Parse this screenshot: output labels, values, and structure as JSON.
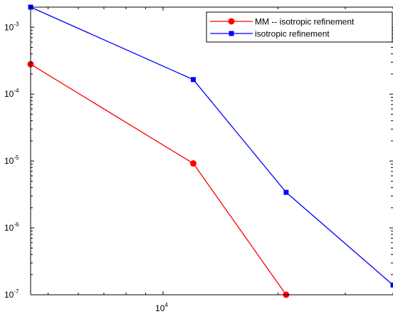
{
  "chart_data": {
    "type": "line",
    "title": "",
    "xlabel": "",
    "ylabel": "",
    "xscale": "log",
    "yscale": "log",
    "xlim": [
      4500,
      40000
    ],
    "ylim": [
      1e-07,
      0.002
    ],
    "grid": false,
    "legend_position": "top-right",
    "x_ticks": [
      {
        "base": "10",
        "exp": "4",
        "value": 10000
      }
    ],
    "y_ticks": [
      {
        "base": "10",
        "exp": "-3",
        "value": 0.001
      },
      {
        "base": "10",
        "exp": "-4",
        "value": 0.0001
      },
      {
        "base": "10",
        "exp": "-5",
        "value": 1e-05
      },
      {
        "base": "10",
        "exp": "-6",
        "value": 1e-06
      },
      {
        "base": "10",
        "exp": "-7",
        "value": 1e-07
      }
    ],
    "series": [
      {
        "name": "MM -- isotropic refinement",
        "color": "#ff0000",
        "marker": "circle",
        "x": [
          4500,
          12000,
          21000
        ],
        "y": [
          0.00028,
          9.2e-06,
          1e-07
        ]
      },
      {
        "name": "isotropic refinement",
        "color": "#0000ff",
        "marker": "square",
        "x": [
          4500,
          12000,
          21000,
          40000
        ],
        "y": [
          0.002,
          0.000165,
          3.4e-06,
          1.4e-07
        ]
      }
    ]
  }
}
